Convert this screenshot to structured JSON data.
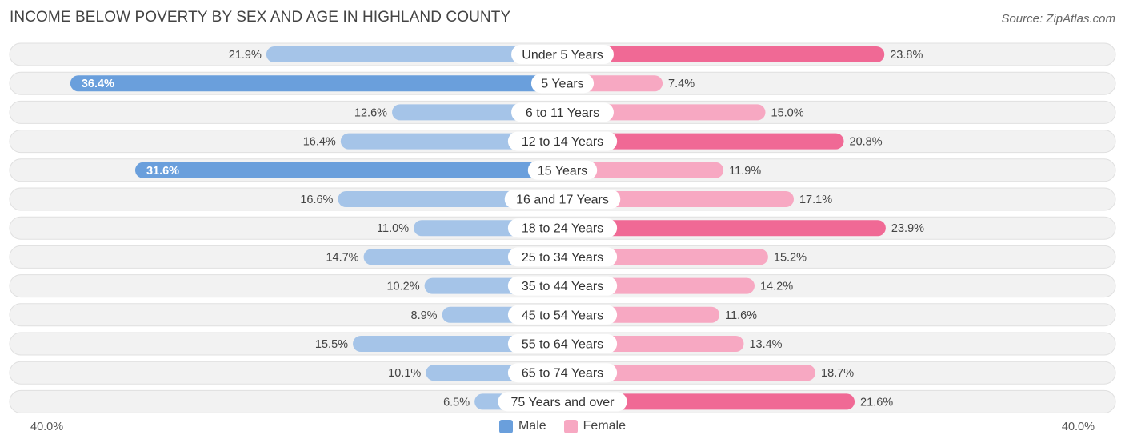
{
  "header": {
    "title": "INCOME BELOW POVERTY BY SEX AND AGE IN HIGHLAND COUNTY",
    "source": "Source: ZipAtlas.com"
  },
  "colors": {
    "male_strong": "#6a9fdc",
    "male_light": "#a5c4e8",
    "female_strong": "#f06995",
    "female_light": "#f7a8c2",
    "row_bg": "#f1f1f1"
  },
  "chart_data": {
    "type": "bar",
    "orientation": "horizontal-diverging",
    "title": "INCOME BELOW POVERTY BY SEX AND AGE IN HIGHLAND COUNTY",
    "categories": [
      "Under 5 Years",
      "5 Years",
      "6 to 11 Years",
      "12 to 14 Years",
      "15 Years",
      "16 and 17 Years",
      "18 to 24 Years",
      "25 to 34 Years",
      "35 to 44 Years",
      "45 to 54 Years",
      "55 to 64 Years",
      "65 to 74 Years",
      "75 Years and over"
    ],
    "series": [
      {
        "name": "Male",
        "values": [
          21.9,
          36.4,
          12.6,
          16.4,
          31.6,
          16.6,
          11.0,
          14.7,
          10.2,
          8.9,
          15.5,
          10.1,
          6.5
        ],
        "labels": [
          "21.9%",
          "36.4%",
          "12.6%",
          "16.4%",
          "31.6%",
          "16.6%",
          "11.0%",
          "14.7%",
          "10.2%",
          "8.9%",
          "15.5%",
          "10.1%",
          "6.5%"
        ]
      },
      {
        "name": "Female",
        "values": [
          23.8,
          7.4,
          15.0,
          20.8,
          11.9,
          17.1,
          23.9,
          15.2,
          14.2,
          11.6,
          13.4,
          18.7,
          21.6
        ],
        "labels": [
          "23.8%",
          "7.4%",
          "15.0%",
          "20.8%",
          "11.9%",
          "17.1%",
          "23.9%",
          "15.2%",
          "14.2%",
          "11.6%",
          "13.4%",
          "18.7%",
          "21.6%"
        ]
      }
    ],
    "xlim": [
      -40,
      40
    ],
    "axis_labels": {
      "left": "40.0%",
      "right": "40.0%"
    },
    "legend": {
      "position": "bottom-center",
      "entries": [
        "Male",
        "Female"
      ]
    }
  }
}
